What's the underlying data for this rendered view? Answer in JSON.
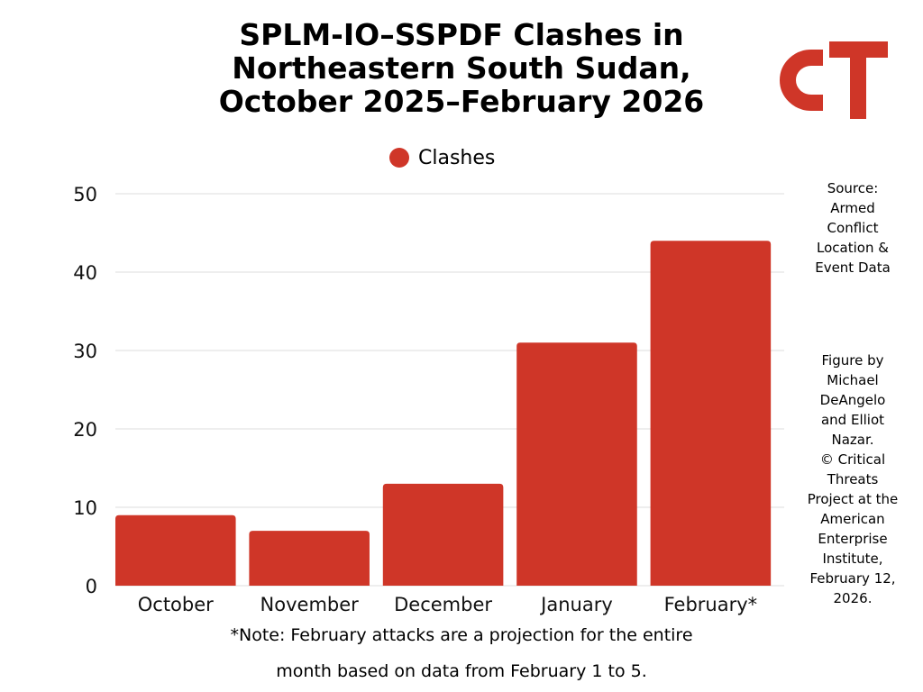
{
  "title": {
    "line1": "SPLM-IO–SSPDF Clashes in",
    "line2": "Northeastern South Sudan,",
    "line3": "October 2025–February 2026"
  },
  "logo": {
    "letters": "CT",
    "color": "#cf3628"
  },
  "legend": {
    "label": "Clashes",
    "color": "#cf3628"
  },
  "source": {
    "lines": [
      "Source:",
      "Armed",
      "Conflict",
      "Location &",
      "Event Data"
    ]
  },
  "credit": {
    "lines": [
      "Figure by",
      "Michael",
      "DeAngelo",
      "and Elliot",
      "Nazar.",
      "© Critical",
      "Threats",
      "Project at the",
      "American",
      "Enterprise",
      "Institute,",
      "February 12,",
      "2026."
    ]
  },
  "note": {
    "line1": "*Note: February attacks are a projection for the entire",
    "line2": "month based on data from February 1 to 5."
  },
  "chart_data": {
    "type": "bar",
    "title": "SPLM-IO–SSPDF Clashes in Northeastern South Sudan, October 2025–February 2026",
    "categories": [
      "October",
      "November",
      "December",
      "January",
      "February*"
    ],
    "series": [
      {
        "name": "Clashes",
        "values": [
          9,
          7,
          13,
          31,
          44
        ],
        "color": "#cf3628"
      }
    ],
    "xlabel": "",
    "ylabel": "",
    "ylim": [
      0,
      50
    ],
    "yticks": [
      0,
      10,
      20,
      30,
      40,
      50
    ],
    "grid": true,
    "legend_position": "top-center"
  }
}
